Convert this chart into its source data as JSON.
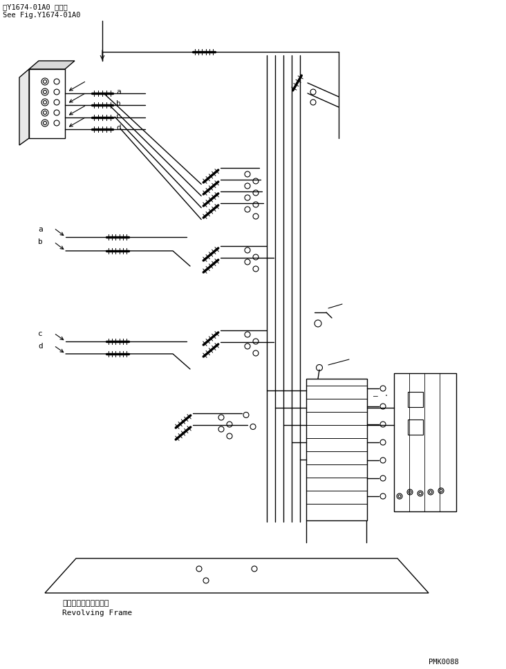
{
  "title_line1": "第Y1674-01A0 図参照",
  "title_line2": "See Fig.Y1674-01A0",
  "watermark": "PMK0088",
  "revolving_frame_jp": "レボルビングフレーム",
  "revolving_frame_en": "Revolving Frame",
  "bg_color": "#ffffff"
}
